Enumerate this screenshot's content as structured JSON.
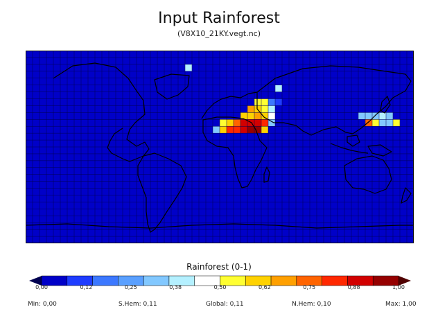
{
  "title": "Input Rainforest",
  "subtitle": "(V8X10_21KY.vegt.nc)",
  "legend": {
    "title": "Rainforest (0-1)",
    "ticks": [
      "0,00",
      "0,12",
      "0,25",
      "0,38",
      "0,50",
      "0,62",
      "0,75",
      "0,88",
      "1,00"
    ],
    "colors": [
      "#0000c8",
      "#1e3cff",
      "#3c78ff",
      "#5aa0ff",
      "#82c8ff",
      "#b4f0ff",
      "#ffffff",
      "#ffff32",
      "#ffd200",
      "#ffa000",
      "#ff6400",
      "#ff2800",
      "#d20000",
      "#960000"
    ]
  },
  "stats": {
    "min": "Min: 0,00",
    "shem": "S.Hem: 0,11",
    "global": "Global: 0,11",
    "nhem": "N.Hem: 0,10",
    "max": "Max: 1,00"
  },
  "map": {
    "background_color": "#0000c8",
    "grid": true,
    "grid_color": "#000050",
    "coastline_color": "#000000",
    "columns": 36,
    "rows": 18,
    "cells": [
      [
        2,
        23,
        0.4
      ],
      [
        5,
        36,
        0.4
      ],
      [
        7,
        35,
        0.2
      ],
      [
        7,
        36,
        0.1
      ],
      [
        7,
        33,
        0.5
      ],
      [
        7,
        34,
        0.55
      ],
      [
        8,
        32,
        0.65
      ],
      [
        8,
        33,
        0.6
      ],
      [
        8,
        34,
        0.5
      ],
      [
        8,
        35,
        0.4
      ],
      [
        9,
        31,
        0.6
      ],
      [
        9,
        32,
        0.62
      ],
      [
        9,
        33,
        0.7
      ],
      [
        9,
        34,
        0.6
      ],
      [
        9,
        35,
        0.45
      ],
      [
        9,
        48,
        0.3
      ],
      [
        9,
        49,
        0.35
      ],
      [
        9,
        50,
        0.35
      ],
      [
        9,
        51,
        0.4
      ],
      [
        9,
        52,
        0.3
      ],
      [
        10,
        28,
        0.5
      ],
      [
        10,
        29,
        0.6
      ],
      [
        10,
        30,
        0.75
      ],
      [
        10,
        31,
        0.9
      ],
      [
        10,
        32,
        0.9
      ],
      [
        10,
        33,
        0.9
      ],
      [
        10,
        34,
        0.8
      ],
      [
        10,
        35,
        0.3
      ],
      [
        10,
        49,
        0.75
      ],
      [
        10,
        50,
        0.55
      ],
      [
        10,
        51,
        0.35
      ],
      [
        10,
        52,
        0.3
      ],
      [
        10,
        53,
        0.5
      ],
      [
        11,
        27,
        0.3
      ],
      [
        11,
        28,
        0.6
      ],
      [
        11,
        29,
        0.8
      ],
      [
        11,
        30,
        0.85
      ],
      [
        11,
        31,
        0.9
      ],
      [
        11,
        32,
        1.0
      ],
      [
        11,
        33,
        1.0
      ],
      [
        11,
        34,
        0.6
      ]
    ]
  }
}
